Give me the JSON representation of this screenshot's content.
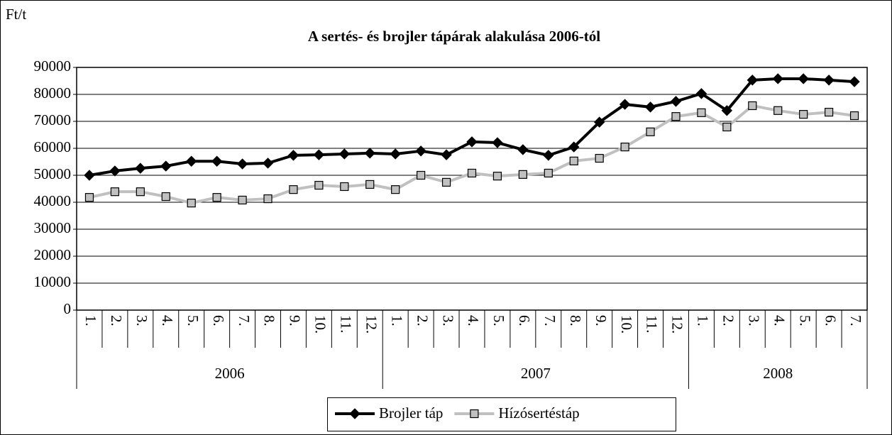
{
  "chart_data": {
    "type": "line",
    "title": "A sertés- és brojler tápárak alakulása 2006-tól",
    "y_label": "Ft/t",
    "categories": [
      [
        "2006",
        "1."
      ],
      [
        "2006",
        "2."
      ],
      [
        "2006",
        "3."
      ],
      [
        "2006",
        "4."
      ],
      [
        "2006",
        "5."
      ],
      [
        "2006",
        "6."
      ],
      [
        "2006",
        "7."
      ],
      [
        "2006",
        "8."
      ],
      [
        "2006",
        "9."
      ],
      [
        "2006",
        "10."
      ],
      [
        "2006",
        "11."
      ],
      [
        "2006",
        "12."
      ],
      [
        "2007",
        "1."
      ],
      [
        "2007",
        "2."
      ],
      [
        "2007",
        "3."
      ],
      [
        "2007",
        "4."
      ],
      [
        "2007",
        "5."
      ],
      [
        "2007",
        "6."
      ],
      [
        "2007",
        "7."
      ],
      [
        "2007",
        "8."
      ],
      [
        "2007",
        "9."
      ],
      [
        "2007",
        "10."
      ],
      [
        "2007",
        "11."
      ],
      [
        "2007",
        "12."
      ],
      [
        "2008",
        "1."
      ],
      [
        "2008",
        "2."
      ],
      [
        "2008",
        "3."
      ],
      [
        "2008",
        "4."
      ],
      [
        "2008",
        "5."
      ],
      [
        "2008",
        "6."
      ],
      [
        "2008",
        "7."
      ]
    ],
    "series": [
      {
        "name": "Brojler táp",
        "color": "#000000",
        "marker": "diamond",
        "values": [
          50000,
          51600,
          52600,
          53400,
          55200,
          55200,
          54200,
          54500,
          57400,
          57600,
          57900,
          58200,
          57900,
          59000,
          57600,
          62400,
          62100,
          59500,
          57400,
          60500,
          69700,
          76300,
          75300,
          77400,
          80300,
          74000,
          85300,
          85800,
          85800,
          85300,
          84700
        ]
      },
      {
        "name": "Hízósertéstáp",
        "color": "#c0c0c0",
        "marker": "square",
        "values": [
          41800,
          43900,
          43900,
          42100,
          39700,
          41800,
          40800,
          41300,
          44700,
          46300,
          45800,
          46600,
          44700,
          50000,
          47400,
          50800,
          49700,
          50300,
          50800,
          55300,
          56300,
          60500,
          66100,
          71800,
          73200,
          67900,
          75800,
          74000,
          72600,
          73400,
          72100
        ]
      }
    ],
    "ylim": [
      0,
      90000
    ],
    "yticks": [
      0,
      10000,
      20000,
      30000,
      40000,
      50000,
      60000,
      70000,
      80000,
      90000
    ],
    "grid": true,
    "legend": "bottom"
  }
}
